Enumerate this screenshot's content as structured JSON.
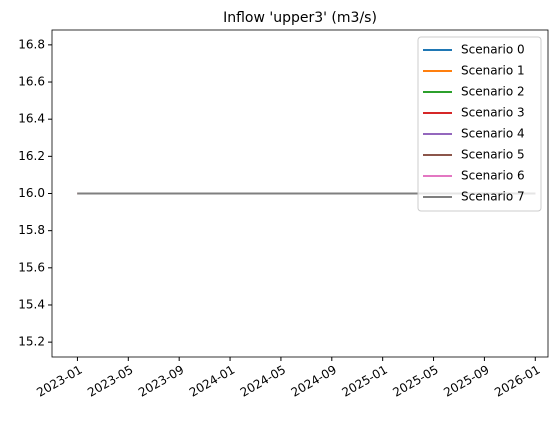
{
  "chart_data": {
    "type": "line",
    "title": "Inflow 'upper3' (m3/s)",
    "x": [
      "2023-01",
      "2026-01"
    ],
    "series": [
      {
        "name": "Scenario 0",
        "color": "#1f77b4",
        "values": [
          16,
          16
        ]
      },
      {
        "name": "Scenario 1",
        "color": "#ff7f0e",
        "values": [
          16,
          16
        ]
      },
      {
        "name": "Scenario 2",
        "color": "#2ca02c",
        "values": [
          16,
          16
        ]
      },
      {
        "name": "Scenario 3",
        "color": "#d62728",
        "values": [
          16,
          16
        ]
      },
      {
        "name": "Scenario 4",
        "color": "#9467bd",
        "values": [
          16,
          16
        ]
      },
      {
        "name": "Scenario 5",
        "color": "#8c564b",
        "values": [
          16,
          16
        ]
      },
      {
        "name": "Scenario 6",
        "color": "#e377c2",
        "values": [
          16,
          16
        ]
      },
      {
        "name": "Scenario 7",
        "color": "#7f7f7f",
        "values": [
          16,
          16
        ]
      }
    ],
    "xlim": [
      "2022-11",
      "2026-02"
    ],
    "xticks": [
      "2023-01",
      "2023-05",
      "2023-09",
      "2024-01",
      "2024-05",
      "2024-09",
      "2025-01",
      "2025-05",
      "2025-09",
      "2026-01"
    ],
    "ylim": [
      15.12,
      16.88
    ],
    "yticks": [
      15.2,
      15.4,
      15.6,
      15.8,
      {
        "value": 16,
        "label": "16.0"
      },
      16.2,
      16.4,
      16.6,
      16.8
    ],
    "grid": false,
    "legend": "upper right"
  }
}
